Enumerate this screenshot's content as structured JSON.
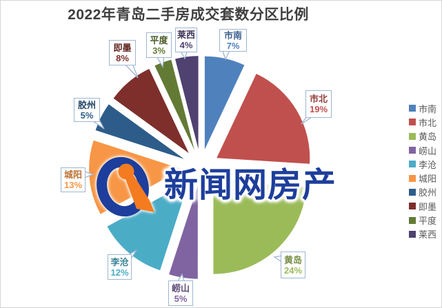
{
  "chart_data": {
    "type": "pie",
    "title": "2022年青岛二手房成交套数分区比例",
    "unit": "%",
    "categories": [
      "市南",
      "市北",
      "黄岛",
      "崂山",
      "李沧",
      "城阳",
      "胶州",
      "即墨",
      "平度",
      "莱西"
    ],
    "values": [
      7,
      19,
      24,
      5,
      12,
      13,
      5,
      8,
      3,
      4
    ],
    "colors": [
      "#4F81BD",
      "#C0504D",
      "#9BBB59",
      "#8064A2",
      "#4BACC6",
      "#F79646",
      "#2E5C8A",
      "#7E2F2C",
      "#637A35",
      "#4F4170"
    ],
    "data_labels": [
      "市南 7%",
      "市北 19%",
      "黄岛 24%",
      "崂山 5%",
      "李沧 12%",
      "城阳 13%",
      "胶州 5%",
      "即墨 8%",
      "平度 3%",
      "莱西 4%"
    ],
    "legend_position": "right",
    "exploded": true,
    "start_angle_deg": 0,
    "direction": "clockwise"
  },
  "watermark": {
    "text": "新闻网房产",
    "logo": "qingdao-news-logo",
    "text_color": "#1d3e9c",
    "logo_blue": "#1d3e9c",
    "logo_orange": "#f57b20"
  },
  "frame": {
    "background": "#ffffff",
    "border_color": "#d5d5d5",
    "title_color": "#3f3f3f",
    "callout_border": "#9db6d2",
    "legend_text_color": "#595959"
  }
}
